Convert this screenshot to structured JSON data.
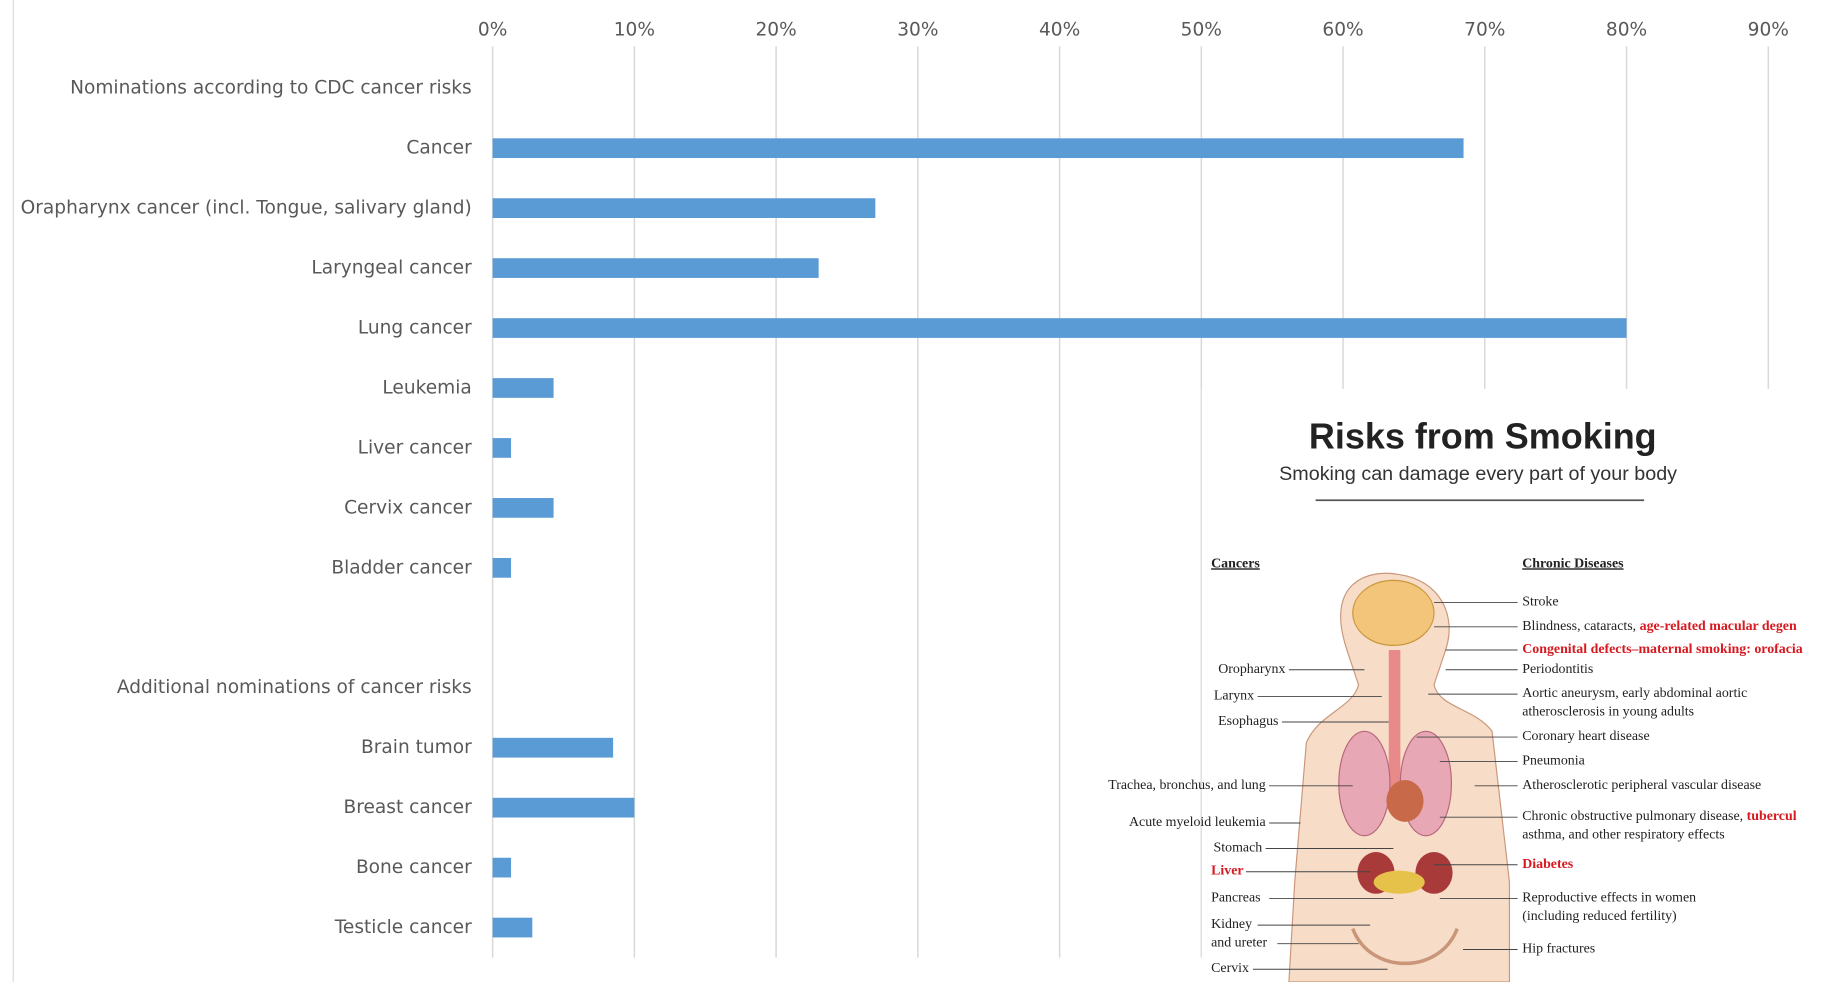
{
  "chart_data": {
    "type": "bar",
    "orientation": "horizontal",
    "categories": [
      "Nominations according to CDC cancer risks",
      "Cancer",
      "Orapharynx cancer (incl. Tongue, salivary gland)",
      "Laryngeal cancer",
      "Lung cancer",
      "Leukemia",
      "Liver cancer",
      "Cervix cancer",
      "Bladder cancer",
      null,
      "Additional nominations of cancer risks",
      "Brain tumor",
      "Breast cancer",
      "Bone cancer",
      "Testicle cancer"
    ],
    "values": [
      null,
      68.5,
      27,
      23,
      80,
      4.3,
      1.3,
      4.3,
      1.3,
      null,
      null,
      8.5,
      10,
      1.3,
      2.8
    ],
    "color": "#5b9bd5",
    "xlim": [
      0,
      90
    ],
    "xticks": [
      {
        "value": 0,
        "label": "0%"
      },
      {
        "value": 10,
        "label": "10%"
      },
      {
        "value": 20,
        "label": "20%"
      },
      {
        "value": 30,
        "label": "30%"
      },
      {
        "value": 40,
        "label": "40%"
      },
      {
        "value": 50,
        "label": "50%"
      },
      {
        "value": 60,
        "label": "60%"
      },
      {
        "value": 70,
        "label": "70%"
      },
      {
        "value": 80,
        "label": "80%"
      },
      {
        "value": 90,
        "label": "90%"
      }
    ],
    "grid": true
  },
  "inset": {
    "title": "Risks from Smoking",
    "subtitle": "Smoking can damage every part of your body",
    "cancers_heading": "Cancers",
    "diseases_heading": "Chronic Diseases",
    "cancers": [
      [
        {
          "text": "Oropharynx"
        }
      ],
      [
        {
          "text": "Larynx"
        }
      ],
      [
        {
          "text": "Esophagus"
        }
      ],
      [
        {
          "text": "Trachea, bronchus, and lung"
        }
      ],
      [
        {
          "text": "Acute myeloid leukemia"
        }
      ],
      [
        {
          "text": "Stomach"
        }
      ],
      [
        {
          "text": "Liver",
          "color": "#d71920"
        }
      ],
      [
        {
          "text": "Pancreas"
        }
      ],
      [
        {
          "text": "Kidney"
        }
      ],
      [
        {
          "text": "and ureter"
        }
      ],
      [
        {
          "text": "Cervix"
        }
      ]
    ],
    "diseases": [
      [
        {
          "text": "Stroke"
        }
      ],
      [
        {
          "text": "Blindness, cataracts, "
        },
        {
          "text": "age-related macular degen",
          "color": "#d71920"
        }
      ],
      [
        {
          "text": "Congenital defects–maternal smoking: orofacia",
          "color": "#d71920"
        }
      ],
      [
        {
          "text": "Periodontitis"
        }
      ],
      [
        {
          "text": "Aortic aneurysm, early abdominal aortic"
        }
      ],
      [
        {
          "text": "atherosclerosis in young adults"
        }
      ],
      [
        {
          "text": "Coronary heart disease"
        }
      ],
      [
        {
          "text": "Pneumonia"
        }
      ],
      [
        {
          "text": "Atherosclerotic peripheral vascular disease"
        }
      ],
      [
        {
          "text": "Chronic obstructive pulmonary disease, "
        },
        {
          "text": "tubercul",
          "color": "#d71920"
        }
      ],
      [
        {
          "text": "asthma, and other respiratory effects"
        }
      ],
      [
        {
          "text": "Diabetes",
          "color": "#d71920"
        }
      ],
      [
        {
          "text": "Reproductive effects in women"
        }
      ],
      [
        {
          "text": "(including reduced fertility)"
        }
      ],
      [
        {
          "text": "Hip fractures"
        }
      ]
    ]
  }
}
